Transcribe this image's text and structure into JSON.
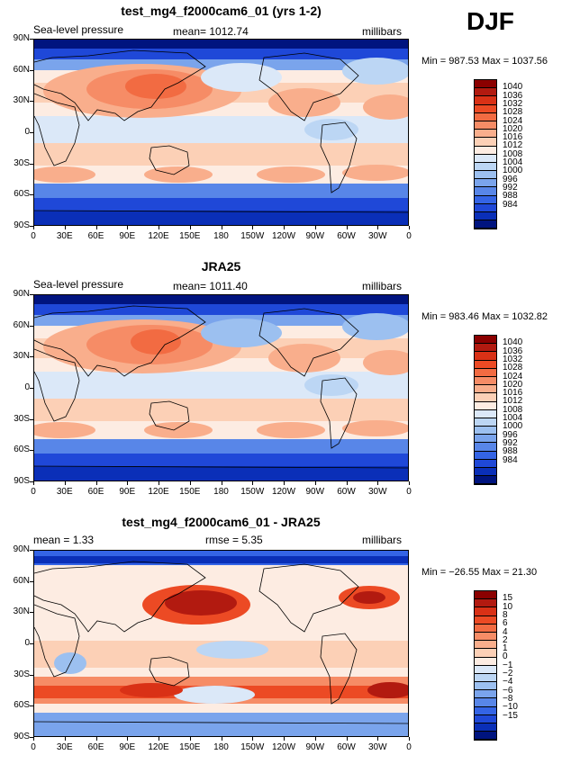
{
  "season": "DJF",
  "x_tick_labels": [
    "0",
    "30E",
    "60E",
    "90E",
    "120E",
    "150E",
    "180",
    "150W",
    "120W",
    "90W",
    "60W",
    "30W",
    "0"
  ],
  "y_tick_labels": [
    "90N",
    "60N",
    "30N",
    "0",
    "30S",
    "60S",
    "90S"
  ],
  "chart_data": [
    {
      "type": "heatmap",
      "title": "test_mg4_f2000cam6_01 (yrs 1-2)",
      "variable": "Sea-level pressure",
      "stat_text": "mean= 1012.74",
      "units": "millibars",
      "minmax": "Min = 987.53 Max = 1037.56",
      "min": 987.53,
      "max": 1037.56,
      "levels": [
        "1040",
        "1036",
        "1032",
        "1028",
        "1024",
        "1020",
        "1016",
        "1012",
        "1008",
        "1004",
        "1000",
        "996",
        "992",
        "988",
        "984"
      ],
      "colors": [
        "#8b0000",
        "#b21a10",
        "#d93116",
        "#ec4a24",
        "#f26b42",
        "#f68c66",
        "#f9ae8c",
        "#fcd0b6",
        "#fdece2",
        "#dbe8f8",
        "#bcd6f4",
        "#9cc0f0",
        "#7aa4ec",
        "#5886e8",
        "#3464e6",
        "#1f48d8",
        "#0a2fb8",
        "#00147f"
      ]
    },
    {
      "type": "heatmap",
      "title": "JRA25",
      "variable": "Sea-level pressure",
      "stat_text": "mean= 1011.40",
      "units": "millibars",
      "minmax": "Min = 983.46 Max = 1032.82",
      "min": 983.46,
      "max": 1032.82,
      "levels": [
        "1040",
        "1036",
        "1032",
        "1028",
        "1024",
        "1020",
        "1016",
        "1012",
        "1008",
        "1004",
        "1000",
        "996",
        "992",
        "988",
        "984"
      ],
      "colors": [
        "#8b0000",
        "#b21a10",
        "#d93116",
        "#ec4a24",
        "#f26b42",
        "#f68c66",
        "#f9ae8c",
        "#fcd0b6",
        "#fdece2",
        "#dbe8f8",
        "#bcd6f4",
        "#9cc0f0",
        "#7aa4ec",
        "#5886e8",
        "#3464e6",
        "#1f48d8",
        "#0a2fb8",
        "#00147f"
      ]
    },
    {
      "type": "heatmap",
      "title": "test_mg4_f2000cam6_01 - JRA25",
      "variable": "",
      "mean_text": "mean =    1.33",
      "rmse_text": "rmse =     5.35",
      "units": "millibars",
      "minmax": "Min = −26.55 Max =   21.30",
      "min": -26.55,
      "max": 21.3,
      "levels": [
        "15",
        "10",
        "8",
        "6",
        "4",
        "2",
        "1",
        "0",
        "−1",
        "−2",
        "−4",
        "−6",
        "−8",
        "−10",
        "−15"
      ],
      "colors": [
        "#8b0000",
        "#b21a10",
        "#d93116",
        "#ec4a24",
        "#f26b42",
        "#f68c66",
        "#f9ae8c",
        "#fcd0b6",
        "#fdece2",
        "#dbe8f8",
        "#bcd6f4",
        "#9cc0f0",
        "#7aa4ec",
        "#5886e8",
        "#3464e6",
        "#1f48d8",
        "#0a2fb8",
        "#00147f"
      ]
    }
  ]
}
